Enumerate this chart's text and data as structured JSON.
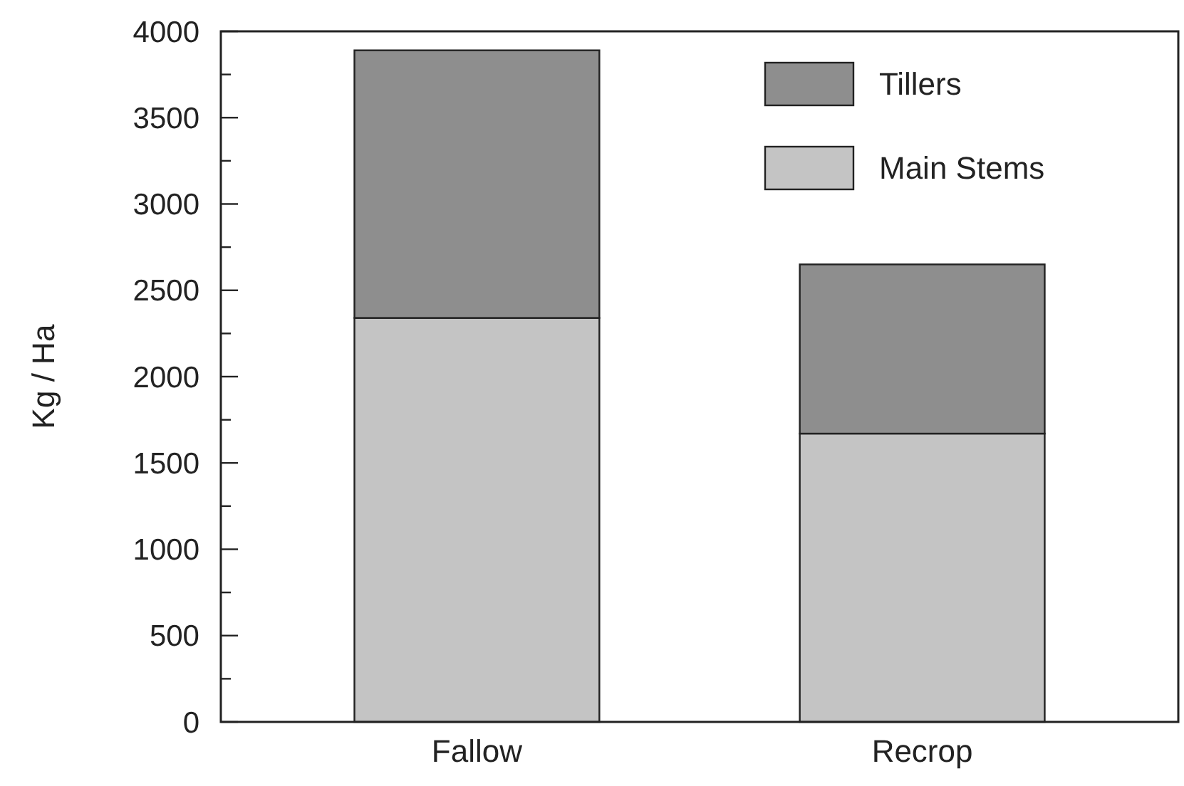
{
  "chart_data": {
    "type": "bar",
    "stacked": true,
    "ylabel": "Kg / Ha",
    "categories": [
      "Fallow",
      "Recrop"
    ],
    "series": [
      {
        "name": "Main Stems",
        "color": "#c4c4c4",
        "values": [
          2340,
          1670
        ]
      },
      {
        "name": "Tillers",
        "color": "#8e8e8e",
        "values": [
          1550,
          980
        ]
      }
    ],
    "ylim": [
      0,
      4000
    ],
    "yticks": [
      0,
      {
        "value": 250,
        "label": null
      },
      500,
      {
        "value": 750,
        "label": null
      },
      1000,
      {
        "value": 1250,
        "label": null
      },
      1500,
      {
        "value": 1750,
        "label": null
      },
      2000,
      {
        "value": 2250,
        "label": null
      },
      2500,
      {
        "value": 2750,
        "label": null
      },
      3000,
      {
        "value": 3250,
        "label": null
      },
      3500,
      {
        "value": 3750,
        "label": null
      },
      4000
    ],
    "legend": "top right",
    "grid": false
  }
}
